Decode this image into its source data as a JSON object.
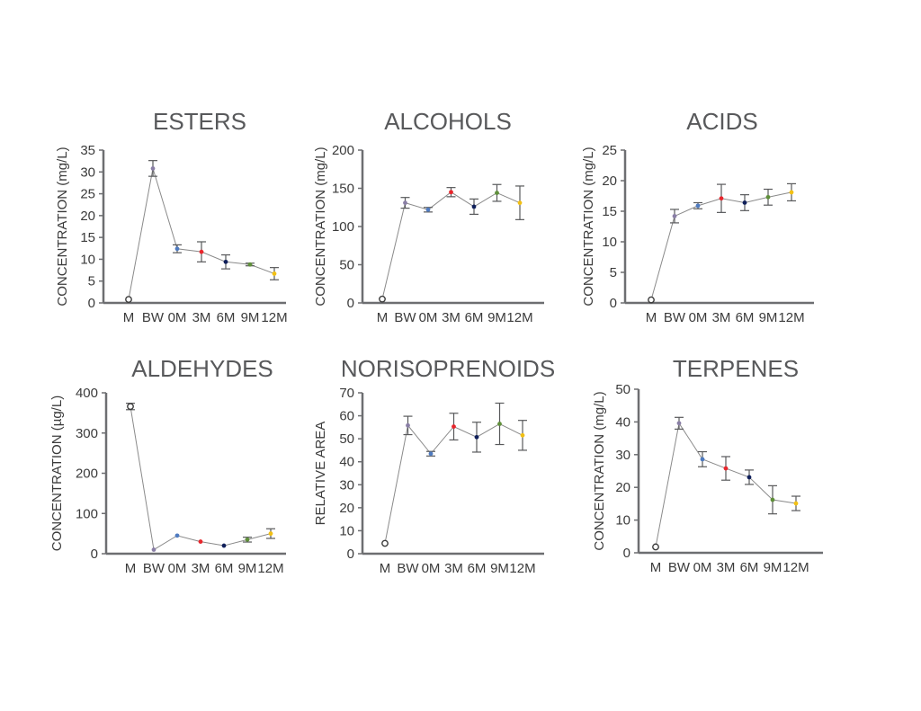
{
  "palette": [
    "#ffffff",
    "#8a7fa6",
    "#4f7bc0",
    "#e8262c",
    "#0f1f5a",
    "#5f8f3a",
    "#f2c014"
  ],
  "chart_data": [
    {
      "type": "line",
      "title": "ESTERS",
      "ylabel": "CONCENTRATION (mg/L)",
      "categories": [
        "M",
        "BW",
        "0M",
        "3M",
        "6M",
        "9M",
        "12M"
      ],
      "ylim": [
        0,
        35
      ],
      "yticks": [
        0,
        5,
        10,
        15,
        20,
        25,
        30,
        35
      ],
      "values": [
        0.8,
        30.8,
        12.4,
        11.7,
        9.4,
        8.8,
        6.7
      ],
      "errors": [
        0,
        1.8,
        0.9,
        2.3,
        1.6,
        0.3,
        1.4
      ]
    },
    {
      "type": "line",
      "title": "ALCOHOLS",
      "ylabel": "CONCENTRATION (mg/L)",
      "categories": [
        "M",
        "BW",
        "0M",
        "3M",
        "6M",
        "9M",
        "12M"
      ],
      "ylim": [
        0,
        200
      ],
      "yticks": [
        0,
        50,
        100,
        150,
        200
      ],
      "values": [
        5,
        131,
        122,
        145,
        126,
        144,
        131
      ],
      "errors": [
        0,
        7,
        3,
        6,
        10,
        11,
        22
      ]
    },
    {
      "type": "line",
      "title": "ACIDS",
      "ylabel": "CONCENTRATION (mg/L)",
      "categories": [
        "M",
        "BW",
        "0M",
        "3M",
        "6M",
        "9M",
        "12M"
      ],
      "ylim": [
        0,
        25
      ],
      "yticks": [
        0,
        5,
        10,
        15,
        20,
        25
      ],
      "values": [
        0.5,
        14.2,
        15.9,
        17.1,
        16.4,
        17.3,
        18.1
      ],
      "errors": [
        0,
        1.1,
        0.5,
        2.3,
        1.3,
        1.3,
        1.4
      ]
    },
    {
      "type": "line",
      "title": "ALDEHYDES",
      "ylabel": "CONCENTRATION (µg/L)",
      "categories": [
        "M",
        "BW",
        "0M",
        "3M",
        "6M",
        "9M",
        "12M"
      ],
      "ylim": [
        0,
        400
      ],
      "yticks": [
        0,
        100,
        200,
        300,
        400
      ],
      "values": [
        366,
        10,
        45,
        30,
        20,
        35,
        50
      ],
      "errors": [
        8,
        0,
        0,
        0,
        0,
        6,
        12
      ]
    },
    {
      "type": "line",
      "title": "NORISOPRENOIDS",
      "ylabel": "RELATIVE AREA",
      "categories": [
        "M",
        "BW",
        "0M",
        "3M",
        "6M",
        "9M",
        "12M"
      ],
      "ylim": [
        0,
        70
      ],
      "yticks": [
        0,
        10,
        20,
        30,
        40,
        50,
        60,
        70
      ],
      "values": [
        4.5,
        55.8,
        43.5,
        55.3,
        50.7,
        56.5,
        51.5
      ],
      "errors": [
        0,
        4,
        1,
        5.8,
        6.5,
        9,
        6.5
      ]
    },
    {
      "type": "line",
      "title": "TERPENES",
      "ylabel": "CONCENTRATION (mg/L)",
      "categories": [
        "M",
        "BW",
        "0M",
        "3M",
        "6M",
        "9M",
        "12M"
      ],
      "ylim": [
        0,
        50
      ],
      "yticks": [
        0,
        10,
        20,
        30,
        40,
        50
      ],
      "values": [
        1.8,
        39.6,
        28.6,
        25.8,
        23.1,
        16.2,
        15.1
      ],
      "errors": [
        0,
        1.8,
        2.3,
        3.6,
        2.2,
        4.3,
        2.2
      ]
    }
  ]
}
